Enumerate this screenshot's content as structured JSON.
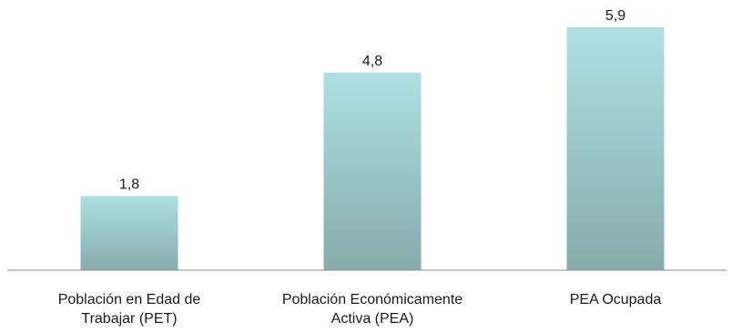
{
  "chart_data": {
    "type": "bar",
    "categories": [
      [
        "Población en Edad de",
        "Trabajar (PET)"
      ],
      [
        "Población Económicamente",
        "Activa (PEA)"
      ],
      [
        "PEA Ocupada"
      ]
    ],
    "values": [
      1.8,
      4.8,
      5.9
    ],
    "value_labels": [
      "1,8",
      "4,8",
      "5,9"
    ],
    "title": "",
    "xlabel": "",
    "ylabel": "",
    "ylim": [
      0,
      6.5
    ],
    "grid": false,
    "legend": "none",
    "colors": {
      "bar_top": "#aee0e3",
      "bar_bottom": "#86abab",
      "axis": "#8c8c8c",
      "text": "#1a1a1a"
    }
  }
}
